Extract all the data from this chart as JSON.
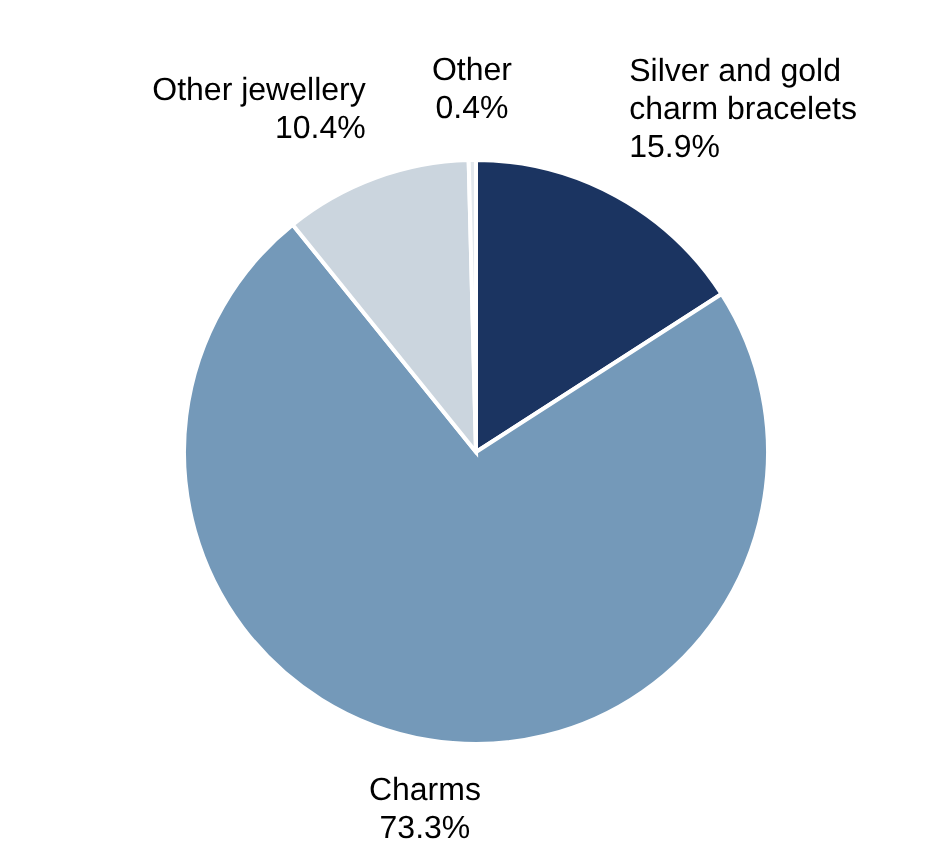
{
  "chart_data": {
    "type": "pie",
    "categories": [
      "Silver and gold charm bracelets",
      "Charms",
      "Other jewellery",
      "Other"
    ],
    "values": [
      15.9,
      73.3,
      10.4,
      0.4
    ],
    "colors": [
      "#1b3461",
      "#7499b9",
      "#cbd5de",
      "#e3e8ed"
    ],
    "value_labels": [
      "15.9%",
      "73.3%",
      "10.4%",
      "0.4%"
    ]
  }
}
